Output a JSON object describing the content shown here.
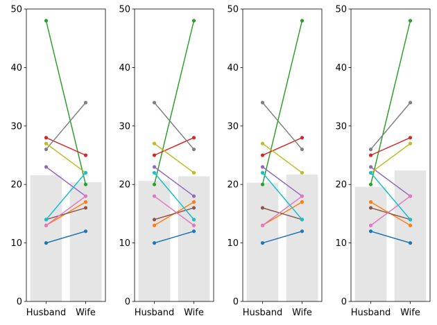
{
  "figure": {
    "chart_data": [
      {
        "type": "line",
        "categories": [
          "Husband",
          "Wife"
        ],
        "ylim": [
          0,
          50
        ],
        "yticks": [
          0,
          10,
          20,
          30,
          40,
          50
        ],
        "grid": false,
        "bar_values": [
          21.6,
          20.4
        ],
        "series": [
          {
            "color": "#1f77b4",
            "values": [
              10,
              12
            ]
          },
          {
            "color": "#ff7f0e",
            "values": [
              13,
              17
            ]
          },
          {
            "color": "#2ca02c",
            "values": [
              48,
              20
            ]
          },
          {
            "color": "#d62728",
            "values": [
              28,
              25
            ]
          },
          {
            "color": "#9467bd",
            "values": [
              23,
              18
            ]
          },
          {
            "color": "#8c564b",
            "values": [
              14,
              16
            ]
          },
          {
            "color": "#e377c2",
            "values": [
              13,
              18
            ]
          },
          {
            "color": "#7f7f7f",
            "values": [
              26,
              34
            ]
          },
          {
            "color": "#bcbd22",
            "values": [
              27,
              22
            ]
          },
          {
            "color": "#17becf",
            "values": [
              14,
              22
            ]
          }
        ]
      },
      {
        "type": "line",
        "categories": [
          "Husband",
          "Wife"
        ],
        "ylim": [
          0,
          50
        ],
        "yticks": [
          0,
          10,
          20,
          30,
          40,
          50
        ],
        "grid": false,
        "bar_values": [
          20.6,
          21.4
        ],
        "series": [
          {
            "color": "#1f77b4",
            "values": [
              10,
              12
            ]
          },
          {
            "color": "#ff7f0e",
            "values": [
              13,
              17
            ]
          },
          {
            "color": "#2ca02c",
            "values": [
              20,
              48
            ]
          },
          {
            "color": "#d62728",
            "values": [
              25,
              28
            ]
          },
          {
            "color": "#9467bd",
            "values": [
              23,
              18
            ]
          },
          {
            "color": "#8c564b",
            "values": [
              14,
              16
            ]
          },
          {
            "color": "#e377c2",
            "values": [
              18,
              13
            ]
          },
          {
            "color": "#7f7f7f",
            "values": [
              34,
              26
            ]
          },
          {
            "color": "#bcbd22",
            "values": [
              27,
              22
            ]
          },
          {
            "color": "#17becf",
            "values": [
              22,
              14
            ]
          }
        ]
      },
      {
        "type": "line",
        "categories": [
          "Husband",
          "Wife"
        ],
        "ylim": [
          0,
          50
        ],
        "yticks": [
          0,
          10,
          20,
          30,
          40,
          50
        ],
        "grid": false,
        "bar_values": [
          20.3,
          21.7
        ],
        "series": [
          {
            "color": "#1f77b4",
            "values": [
              10,
              12
            ]
          },
          {
            "color": "#ff7f0e",
            "values": [
              13,
              17
            ]
          },
          {
            "color": "#2ca02c",
            "values": [
              20,
              48
            ]
          },
          {
            "color": "#d62728",
            "values": [
              25,
              28
            ]
          },
          {
            "color": "#9467bd",
            "values": [
              23,
              18
            ]
          },
          {
            "color": "#8c564b",
            "values": [
              16,
              14
            ]
          },
          {
            "color": "#e377c2",
            "values": [
              13,
              18
            ]
          },
          {
            "color": "#7f7f7f",
            "values": [
              34,
              26
            ]
          },
          {
            "color": "#bcbd22",
            "values": [
              27,
              22
            ]
          },
          {
            "color": "#17becf",
            "values": [
              22,
              14
            ]
          }
        ]
      },
      {
        "type": "line",
        "categories": [
          "Husband",
          "Wife"
        ],
        "ylim": [
          0,
          50
        ],
        "yticks": [
          0,
          10,
          20,
          30,
          40,
          50
        ],
        "grid": false,
        "bar_values": [
          19.6,
          22.4
        ],
        "series": [
          {
            "color": "#1f77b4",
            "values": [
              12,
              10
            ]
          },
          {
            "color": "#ff7f0e",
            "values": [
              17,
              13
            ]
          },
          {
            "color": "#2ca02c",
            "values": [
              20,
              48
            ]
          },
          {
            "color": "#d62728",
            "values": [
              25,
              28
            ]
          },
          {
            "color": "#9467bd",
            "values": [
              23,
              18
            ]
          },
          {
            "color": "#8c564b",
            "values": [
              16,
              14
            ]
          },
          {
            "color": "#e377c2",
            "values": [
              13,
              18
            ]
          },
          {
            "color": "#7f7f7f",
            "values": [
              26,
              34
            ]
          },
          {
            "color": "#bcbd22",
            "values": [
              22,
              27
            ]
          },
          {
            "color": "#17becf",
            "values": [
              22,
              14
            ]
          }
        ]
      }
    ]
  }
}
